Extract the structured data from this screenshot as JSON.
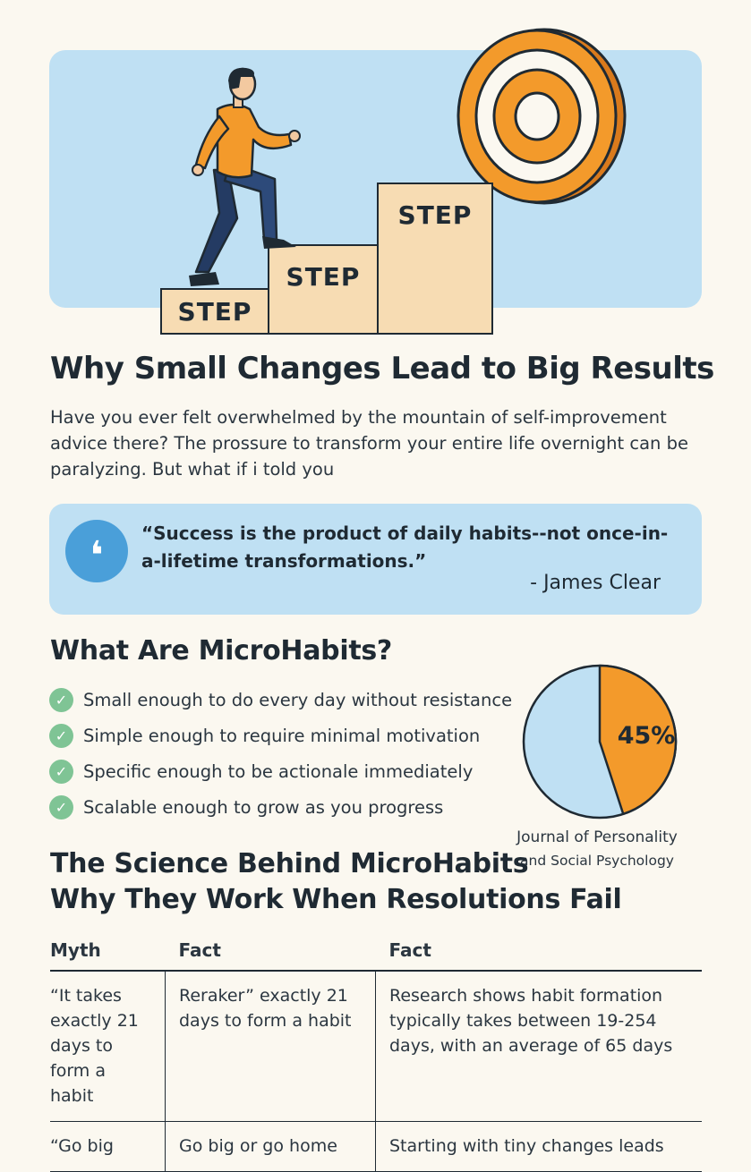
{
  "hero": {
    "steps": [
      "STEP",
      "STEP",
      "STEP"
    ],
    "colors": {
      "background": "#bfe0f3",
      "step": "#f7dcb3",
      "accent": "#f39a2b"
    }
  },
  "article": {
    "title": "Why Small Changes Lead to Big Results",
    "intro": "Have you ever felt overwhelmed by the mountain of self-improvement advice there? The prossure to transform your entire life overnight can be paralyzing. But what if i told you"
  },
  "quote": {
    "icon": "quote-icon",
    "text": "“Success is the product of daily habits--not once-in-a-lifetime transformations.”",
    "author": "- James Clear"
  },
  "microhabits": {
    "heading": "What Are MicroHabits?",
    "items": [
      "Small enough to do every day without resistance",
      "Simple enough to require minimal motivation",
      "Specific enough to be actionale immediately",
      "Scalable enough to grow as you progress"
    ]
  },
  "stat": {
    "label": "45%",
    "value_percent": 45,
    "source_line1": "Journal of Personality",
    "source_line2": "and Social Psychology",
    "colors": {
      "highlight": "#f39a2b",
      "rest": "#bfe0f3"
    }
  },
  "science": {
    "heading_line1": "The Science Behind MicroHabits",
    "heading_line2": "Why They Work When Resolutions Fail"
  },
  "table": {
    "headers": [
      "Myth",
      "Fact",
      "Fact"
    ],
    "rows": [
      [
        "“It takes exactly 21 days to form a habit",
        "Reraker” exactly 21 days to form a habit",
        "Research shows habit formation typically takes between 19-254 days, with an average of 65 days"
      ],
      [
        "“Go big",
        "Go big or go home",
        "Starting with tiny changes leads"
      ]
    ]
  }
}
